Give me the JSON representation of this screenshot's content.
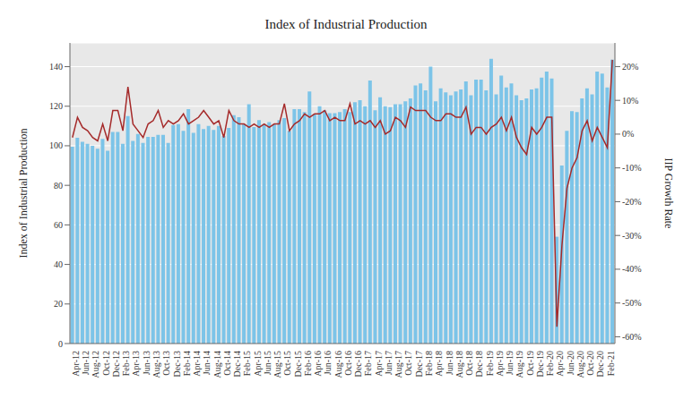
{
  "chart_data": {
    "type": "bar",
    "title": "Index of Industrial Production",
    "ylabel": "Index of Industrial Production",
    "y2label": "IIP Growth Rate",
    "categories": [
      "Apr-12",
      null,
      "Jun-12",
      null,
      "Aug-12",
      null,
      "Oct-12",
      null,
      "Dec-12",
      null,
      "Feb-13",
      null,
      "Apr-13",
      null,
      "Jun-13",
      null,
      "Aug-13",
      null,
      "Oct-13",
      null,
      "Dec-13",
      null,
      "Feb-14",
      null,
      "Apr-14",
      null,
      "Jun-14",
      null,
      "Aug-14",
      null,
      "Oct-14",
      null,
      "Dec-14",
      null,
      "Feb-15",
      null,
      "Apr-15",
      null,
      "Jun-15",
      null,
      "Aug-15",
      null,
      "Oct-15",
      null,
      "Dec-15",
      null,
      "Feb-16",
      null,
      "Apr-16",
      null,
      "Jun-16",
      null,
      "Aug-16",
      null,
      "Oct-16",
      null,
      "Dec-16",
      null,
      "Feb-17",
      null,
      "Apr-17",
      null,
      "Jun-17",
      null,
      "Aug-17",
      null,
      "Oct-17",
      null,
      "Dec-17",
      null,
      "Feb-18",
      null,
      "Apr-18",
      null,
      "Jun-18",
      null,
      "Aug-18",
      null,
      "Oct-18",
      null,
      "Dec-18",
      null,
      "Feb-19",
      null,
      "Apr-19",
      null,
      "Jun-19",
      null,
      "Aug-19",
      null,
      "Oct-19",
      null,
      "Dec-19",
      null,
      "Feb-20",
      null,
      "Apr-20",
      null,
      "Jun-20",
      null,
      "Aug-20",
      null,
      "Oct-20",
      null,
      "Dec-20",
      null,
      "Feb-21",
      null
    ],
    "series": [
      {
        "type": "bar",
        "color": "#7cc4e8",
        "values": [
          99.5,
          104,
          102,
          101,
          100,
          98.5,
          103.5,
          97.5,
          107,
          107,
          101,
          115,
          102.5,
          106,
          101.5,
          104.5,
          104.5,
          105.5,
          105.5,
          101.5,
          110.5,
          111,
          107.5,
          118.5,
          106.5,
          111,
          108.5,
          110,
          108,
          110,
          105,
          109,
          115.5,
          114.5,
          111,
          121,
          109.5,
          113,
          111,
          112,
          111,
          113,
          114,
          107.5,
          118.5,
          118.5,
          117,
          127.5,
          116,
          120,
          118,
          116.5,
          116.5,
          117,
          118.5,
          117,
          122,
          123,
          120,
          133,
          118,
          124.5,
          120,
          119.5,
          121,
          121,
          122.5,
          124,
          130.5,
          131.5,
          128,
          140,
          122.5,
          129,
          127,
          125.5,
          127.5,
          128.5,
          132.5,
          125.5,
          133.5,
          133.5,
          128,
          144,
          126,
          135.5,
          129.5,
          131.5,
          125.5,
          123,
          124,
          128.5,
          129,
          134.5,
          137.5,
          134,
          54,
          90,
          107.5,
          117.5,
          117,
          124,
          129,
          126,
          137.5,
          136.5,
          129.5,
          143.5
        ]
      },
      {
        "type": "line",
        "axis": "y2",
        "color": "#a52a2a",
        "values": [
          -1,
          5,
          2,
          1,
          -1,
          -2,
          3,
          -2,
          7,
          7,
          1,
          14,
          3,
          1,
          -1,
          3,
          4,
          7,
          2,
          4,
          3,
          4,
          6,
          3,
          4,
          5,
          7,
          5,
          3,
          4,
          -1,
          7,
          4,
          3,
          3,
          2,
          3,
          2,
          3,
          2,
          3,
          3,
          9,
          1,
          3,
          4,
          6,
          5,
          6,
          6,
          7,
          4,
          5,
          4,
          4,
          9,
          3,
          4,
          3,
          4,
          2,
          4,
          0,
          1,
          5,
          4,
          2,
          8,
          7,
          7,
          7,
          5,
          4,
          4,
          6,
          6,
          5,
          5,
          8,
          0,
          2,
          2,
          0,
          2,
          3,
          5,
          1,
          5,
          -1,
          -4,
          -6,
          2,
          0,
          2,
          5,
          5,
          -57,
          -33,
          -16,
          -10,
          -7,
          1,
          4,
          -2,
          2,
          -1,
          -4,
          22
        ]
      }
    ],
    "ylim": [
      0,
      152
    ],
    "yticks": [
      0,
      20,
      40,
      60,
      80,
      100,
      120,
      140
    ],
    "y2lim": [
      -62,
      27
    ],
    "y2ticks": [
      {
        "value": -60,
        "label": "-60%"
      },
      {
        "value": -50,
        "label": "-50%"
      },
      {
        "value": -40,
        "label": "-40%"
      },
      {
        "value": -30,
        "label": "-30%"
      },
      {
        "value": -20,
        "label": "-20%"
      },
      {
        "value": -10,
        "label": "-10%"
      },
      {
        "value": 0,
        "label": "0%"
      },
      {
        "value": 10,
        "label": "10%"
      },
      {
        "value": 20,
        "label": "20%"
      }
    ],
    "grid": true
  }
}
